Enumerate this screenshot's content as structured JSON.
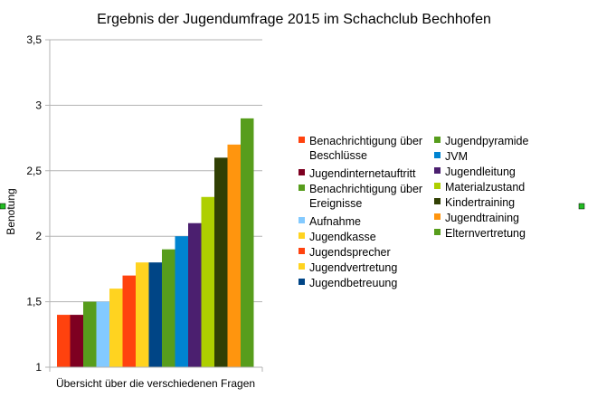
{
  "chart_data": {
    "type": "bar",
    "title": "Ergebnis der Jugendumfrage 2015 im Schachclub Bechhofen",
    "xlabel": "Übersicht über die verschiedenen Fragen",
    "ylabel": "Benotung",
    "ylim": [
      1,
      3.5
    ],
    "yticks": [
      "1",
      "1,5",
      "2",
      "2,5",
      "3",
      "3,5"
    ],
    "grid": true,
    "legend_position": "right",
    "series": [
      {
        "name": "Benachrichtigung über Beschlüsse",
        "value": 1.4,
        "color": "#ff420e"
      },
      {
        "name": "Jugendinternetauftritt",
        "value": 1.4,
        "color": "#7e0021"
      },
      {
        "name": "Benachrichtigung über Ereignisse",
        "value": 1.5,
        "color": "#579d1c"
      },
      {
        "name": "Aufnahme",
        "value": 1.5,
        "color": "#83caff"
      },
      {
        "name": "Jugendkasse",
        "value": 1.6,
        "color": "#ffd320"
      },
      {
        "name": "Jugendsprecher",
        "value": 1.7,
        "color": "#ff420e"
      },
      {
        "name": "Jugendvertretung",
        "value": 1.8,
        "color": "#ffd320"
      },
      {
        "name": "Jugendbetreuung",
        "value": 1.8,
        "color": "#004586"
      },
      {
        "name": "Jugendpyramide",
        "value": 1.9,
        "color": "#579d1c"
      },
      {
        "name": "JVM",
        "value": 2.0,
        "color": "#0084d1"
      },
      {
        "name": "Jugendleitung",
        "value": 2.1,
        "color": "#4b1f6f"
      },
      {
        "name": "Materialzustand",
        "value": 2.3,
        "color": "#aecf00"
      },
      {
        "name": "Kindertraining",
        "value": 2.6,
        "color": "#314004"
      },
      {
        "name": "Jugendtraining",
        "value": 2.7,
        "color": "#ff950e"
      },
      {
        "name": "Elternvertretung",
        "value": 2.9,
        "color": "#579d1c"
      }
    ]
  },
  "handle_color": "#22bb22"
}
